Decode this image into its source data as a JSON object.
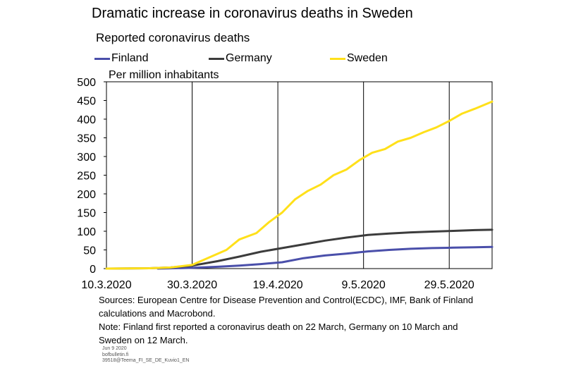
{
  "header": {
    "title": "Dramatic increase in coronavirus deaths in Sweden",
    "subtitle": "Reported coronavirus deaths"
  },
  "legend": [
    {
      "name": "Finland",
      "color": "#4a4faa"
    },
    {
      "name": "Germany",
      "color": "#3c3c3c"
    },
    {
      "name": "Sweden",
      "color": "#ffe01a"
    }
  ],
  "chart_data": {
    "type": "line",
    "title": "Reported coronavirus deaths",
    "ylabel": "Per million inhabitants",
    "ylim": [
      0,
      500
    ],
    "yticks": [
      "0",
      "50",
      "100",
      "150",
      "200",
      "250",
      "300",
      "350",
      "400",
      "450",
      "500"
    ],
    "xticks": [
      "10.3.2020",
      "30.3.2020",
      "19.4.2020",
      "9.5.2020",
      "29.5.2020"
    ],
    "x_start": "10.3.2020",
    "x_end": "8.6.2020",
    "grid": "vertical",
    "legend_position": "top",
    "series": [
      {
        "name": "Finland",
        "color": "#4a4faa",
        "points": [
          [
            "22.3.2020",
            0
          ],
          [
            "30.3.2020",
            2
          ],
          [
            "5.4.2020",
            5
          ],
          [
            "10.4.2020",
            8
          ],
          [
            "15.4.2020",
            12
          ],
          [
            "20.4.2020",
            17
          ],
          [
            "25.4.2020",
            28
          ],
          [
            "30.4.2020",
            35
          ],
          [
            "5.5.2020",
            40
          ],
          [
            "10.5.2020",
            46
          ],
          [
            "15.5.2020",
            50
          ],
          [
            "20.5.2020",
            53
          ],
          [
            "25.5.2020",
            55
          ],
          [
            "30.5.2020",
            56
          ],
          [
            "4.6.2020",
            57
          ],
          [
            "8.6.2020",
            58
          ]
        ]
      },
      {
        "name": "Germany",
        "color": "#3c3c3c",
        "points": [
          [
            "10.3.2020",
            0
          ],
          [
            "20.3.2020",
            1
          ],
          [
            "25.3.2020",
            3
          ],
          [
            "30.3.2020",
            8
          ],
          [
            "5.4.2020",
            20
          ],
          [
            "10.4.2020",
            32
          ],
          [
            "15.4.2020",
            45
          ],
          [
            "20.4.2020",
            55
          ],
          [
            "25.4.2020",
            65
          ],
          [
            "30.4.2020",
            75
          ],
          [
            "5.5.2020",
            83
          ],
          [
            "10.5.2020",
            90
          ],
          [
            "15.5.2020",
            94
          ],
          [
            "20.5.2020",
            97
          ],
          [
            "25.5.2020",
            99
          ],
          [
            "30.5.2020",
            101
          ],
          [
            "4.6.2020",
            103
          ],
          [
            "8.6.2020",
            104
          ]
        ]
      },
      {
        "name": "Sweden",
        "color": "#ffe01a",
        "points": [
          [
            "10.3.2020",
            0
          ],
          [
            "20.3.2020",
            1
          ],
          [
            "25.3.2020",
            3
          ],
          [
            "30.3.2020",
            10
          ],
          [
            "3.4.2020",
            30
          ],
          [
            "7.4.2020",
            50
          ],
          [
            "10.4.2020",
            78
          ],
          [
            "14.4.2020",
            95
          ],
          [
            "17.4.2020",
            125
          ],
          [
            "20.4.2020",
            150
          ],
          [
            "23.4.2020",
            185
          ],
          [
            "26.4.2020",
            208
          ],
          [
            "29.4.2020",
            225
          ],
          [
            "2.5.2020",
            250
          ],
          [
            "5.5.2020",
            265
          ],
          [
            "8.5.2020",
            290
          ],
          [
            "11.5.2020",
            310
          ],
          [
            "14.5.2020",
            320
          ],
          [
            "17.5.2020",
            340
          ],
          [
            "20.5.2020",
            350
          ],
          [
            "23.5.2020",
            365
          ],
          [
            "26.5.2020",
            378
          ],
          [
            "29.5.2020",
            395
          ],
          [
            "1.6.2020",
            415
          ],
          [
            "4.6.2020",
            428
          ],
          [
            "8.6.2020",
            447
          ]
        ]
      }
    ]
  },
  "sources": {
    "line1": "Sources: European Centre for Disease Prevention and Control(ECDC), IMF, Bank of Finland",
    "line2": "calculations and Macrobond.",
    "line3": "Note: Finland first reported a coronavirus death on 22 March, Germany on 10 March and",
    "line4": "Sweden on 12 March."
  },
  "footer": {
    "date": "Jun 9 2020",
    "site": "bofbulletin.fi",
    "code": "39518@Teema_FI_SE_DE_Kuvio1_EN"
  }
}
